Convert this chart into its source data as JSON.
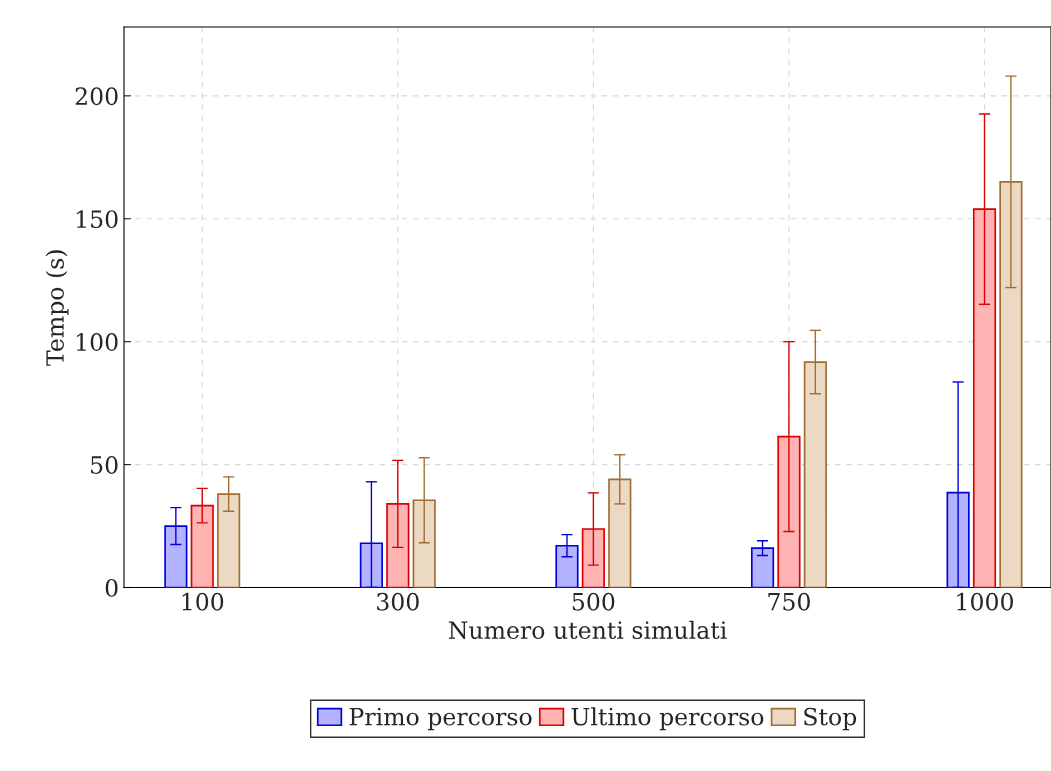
{
  "chart_data": {
    "type": "bar",
    "xlabel": "Numero utenti simulati",
    "ylabel": "Tempo (s)",
    "categories": [
      "100",
      "300",
      "500",
      "750",
      "1000"
    ],
    "series": [
      {
        "name": "Primo percorso",
        "color": "#b3b3ff",
        "values": [
          25,
          18,
          17,
          16,
          38.6
        ],
        "errors": [
          7.5,
          [
            0,
            43
          ],
          4.5,
          3,
          [
            0,
            83.6
          ]
        ]
      },
      {
        "name": "Ultimo percorso",
        "color": "#ffb3b3",
        "values": [
          33.3,
          34,
          23.8,
          61.4,
          153.9
        ],
        "errors": [
          7,
          17.7,
          14.7,
          38.6,
          38.7
        ]
      },
      {
        "name": "Stop",
        "color": "#ebd9c4",
        "values": [
          38,
          35.5,
          44,
          91.7,
          165
        ],
        "errors": [
          7,
          17.3,
          10,
          12.9,
          43
        ]
      }
    ],
    "ylim": [
      0,
      228
    ],
    "yticks": [
      0,
      50,
      100,
      150,
      200
    ],
    "grid": true,
    "legend": "bottom"
  }
}
